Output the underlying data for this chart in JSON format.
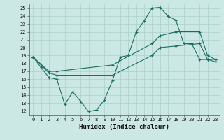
{
  "xlabel": "Humidex (Indice chaleur)",
  "bg_color": "#cce8e4",
  "grid_color": "#aad0ca",
  "line_color": "#1a6e64",
  "xlim": [
    -0.5,
    23.5
  ],
  "ylim": [
    11.5,
    25.5
  ],
  "xticks": [
    0,
    1,
    2,
    3,
    4,
    5,
    6,
    7,
    8,
    9,
    10,
    11,
    12,
    13,
    14,
    15,
    16,
    17,
    18,
    19,
    20,
    21,
    22,
    23
  ],
  "yticks": [
    12,
    13,
    14,
    15,
    16,
    17,
    18,
    19,
    20,
    21,
    22,
    23,
    24,
    25
  ],
  "line1_x": [
    0,
    1,
    2,
    3,
    4,
    5,
    6,
    7,
    8,
    9,
    10,
    11,
    12,
    13,
    14,
    15,
    16,
    17,
    18,
    19,
    20,
    21,
    22,
    23
  ],
  "line1_y": [
    18.8,
    17.5,
    16.2,
    16.0,
    12.8,
    14.4,
    13.2,
    11.9,
    12.1,
    13.4,
    15.8,
    18.8,
    19.0,
    22.0,
    23.4,
    25.0,
    25.1,
    24.0,
    23.5,
    20.5,
    20.5,
    18.5,
    18.5,
    18.5
  ],
  "line2_x": [
    0,
    2,
    3,
    10,
    15,
    16,
    18,
    21,
    22,
    23
  ],
  "line2_y": [
    18.8,
    17.0,
    17.0,
    17.8,
    20.5,
    21.5,
    22.0,
    22.0,
    19.0,
    18.5
  ],
  "line3_x": [
    0,
    2,
    3,
    10,
    15,
    16,
    18,
    21,
    22,
    23
  ],
  "line3_y": [
    18.8,
    16.8,
    16.5,
    16.5,
    19.0,
    20.0,
    20.2,
    20.5,
    18.5,
    18.2
  ]
}
